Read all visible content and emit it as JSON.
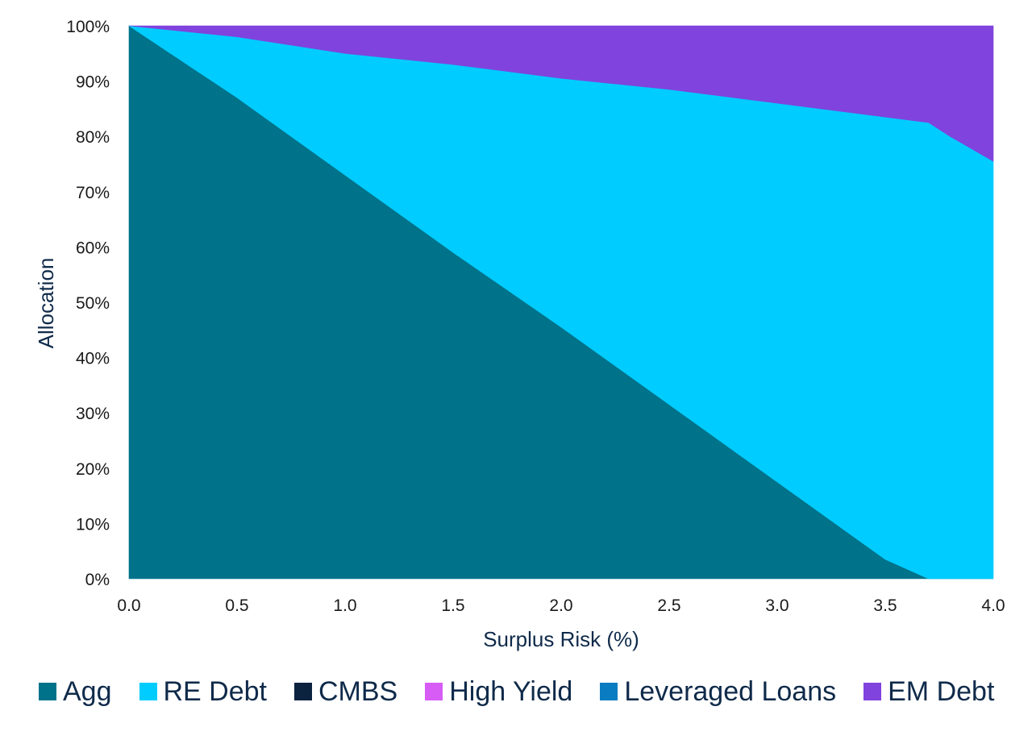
{
  "chart_data": {
    "type": "area",
    "stacked": true,
    "normalized_percent": true,
    "xlabel": "Surplus Risk (%)",
    "ylabel": "Allocation",
    "xlim": [
      0.0,
      4.0
    ],
    "ylim": [
      0,
      100
    ],
    "x_ticks": [
      "0.0",
      "0.5",
      "1.0",
      "1.5",
      "2.0",
      "2.5",
      "3.0",
      "3.5",
      "4.0"
    ],
    "y_ticks": [
      "0%",
      "10%",
      "20%",
      "30%",
      "40%",
      "50%",
      "60%",
      "70%",
      "80%",
      "90%",
      "100%"
    ],
    "grid": false,
    "legend_position": "bottom",
    "x": [
      0.0,
      0.5,
      1.0,
      1.5,
      2.0,
      2.5,
      3.0,
      3.5,
      3.7,
      3.8,
      4.0
    ],
    "series": [
      {
        "name": "Agg",
        "color": "#00738a",
        "values": [
          100,
          87,
          73,
          59,
          45.5,
          31.5,
          17.5,
          3.5,
          0,
          0,
          0
        ]
      },
      {
        "name": "RE Debt",
        "color": "#00ccff",
        "values": [
          0,
          11,
          22,
          34,
          45,
          57,
          68.5,
          80,
          82.5,
          80,
          75.5
        ]
      },
      {
        "name": "CMBS",
        "color": "#0c2340",
        "values": [
          0,
          0,
          0,
          0,
          0,
          0,
          0,
          0,
          0,
          0,
          0
        ]
      },
      {
        "name": "High Yield",
        "color": "#d65cf5",
        "values": [
          0,
          0,
          0,
          0,
          0,
          0,
          0,
          0,
          0,
          0,
          0
        ]
      },
      {
        "name": "Leveraged Loans",
        "color": "#0a7cc2",
        "values": [
          0,
          0,
          0,
          0,
          0,
          0,
          0,
          0,
          0,
          0,
          0
        ]
      },
      {
        "name": "EM Debt",
        "color": "#8043dd",
        "values": [
          0,
          2,
          5,
          7,
          9.5,
          11.5,
          14,
          16.5,
          17.5,
          20,
          24.5
        ]
      }
    ]
  }
}
